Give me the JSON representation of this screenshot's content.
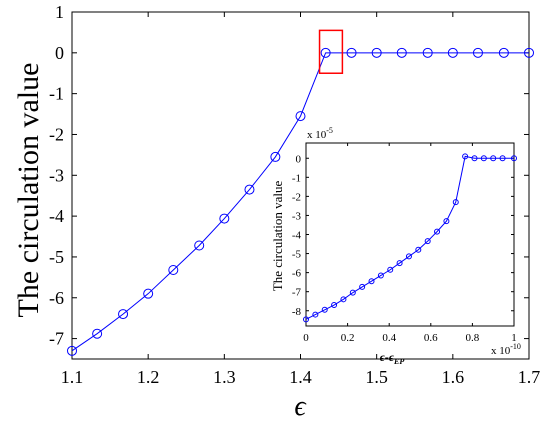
{
  "chart_data": [
    {
      "type": "line",
      "title": "",
      "xlabel": "ϵ",
      "ylabel": "The circulation value",
      "xlim": [
        1.1,
        1.7
      ],
      "ylim": [
        -7.5,
        1
      ],
      "x_ticks": [
        "1.1",
        "1.2",
        "1.3",
        "1.4",
        "1.5",
        "1.6",
        "1.7"
      ],
      "y_ticks": [
        "1",
        "0",
        "-1",
        "-2",
        "-3",
        "-4",
        "-5",
        "-6",
        "-7"
      ],
      "series": [
        {
          "x": [
            1.1,
            1.133,
            1.167,
            1.2,
            1.233,
            1.267,
            1.3,
            1.333,
            1.367,
            1.4,
            1.433,
            1.467,
            1.5,
            1.533,
            1.567,
            1.6,
            1.633,
            1.667,
            1.7
          ],
          "y": [
            -7.3,
            -6.88,
            -6.4,
            -5.9,
            -5.32,
            -4.72,
            -4.06,
            -3.35,
            -2.55,
            -1.55,
            0,
            0,
            0,
            0,
            0,
            0,
            0,
            0,
            0
          ]
        }
      ],
      "highlight_box": {
        "x": [
          1.425,
          1.455
        ],
        "y": [
          -0.5,
          0.55
        ]
      },
      "colors": {
        "line": "#0000ff",
        "box": "#ff0000"
      }
    },
    {
      "type": "line",
      "title": "",
      "xlabel": "ϵ-ϵ",
      "xlabel_sub": "EP",
      "ylabel": "The circulation value",
      "xlim": [
        0,
        1
      ],
      "ylim": [
        -8.8,
        0.8
      ],
      "x_ticks": [
        "0",
        "0.2",
        "0.4",
        "0.6",
        "0.8",
        "1"
      ],
      "y_ticks": [
        "0",
        "-1",
        "-2",
        "-3",
        "-4",
        "-5",
        "-6",
        "-7",
        "-8"
      ],
      "y_multiplier": "x 10",
      "y_multiplier_exp": "-5",
      "x_multiplier": "x 10",
      "x_multiplier_exp": "-10",
      "series": [
        {
          "x": [
            0,
            0.045,
            0.09,
            0.135,
            0.18,
            0.225,
            0.27,
            0.315,
            0.36,
            0.405,
            0.45,
            0.495,
            0.54,
            0.585,
            0.63,
            0.675,
            0.72,
            0.765,
            0.81,
            0.855,
            0.9,
            0.945,
            1.0
          ],
          "y": [
            -8.45,
            -8.2,
            -7.95,
            -7.7,
            -7.4,
            -7.05,
            -6.75,
            -6.45,
            -6.15,
            -5.85,
            -5.5,
            -5.15,
            -4.8,
            -4.35,
            -3.85,
            -3.3,
            -2.3,
            0.1,
            0.0,
            0.0,
            0.0,
            0.0,
            0.0
          ]
        }
      ],
      "colors": {
        "line": "#0000ff"
      }
    }
  ]
}
